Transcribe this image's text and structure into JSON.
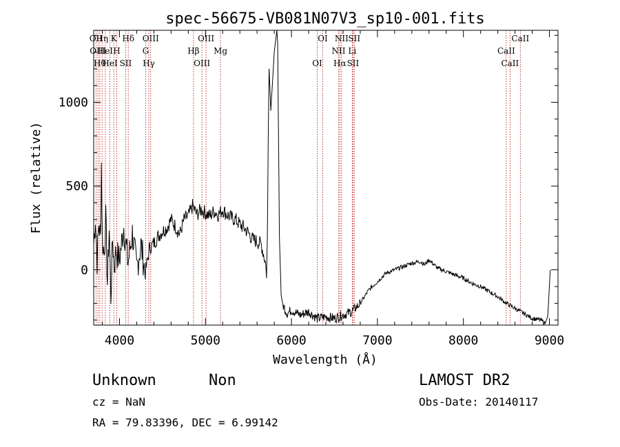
{
  "chart_data": {
    "type": "line",
    "title": "spec-56675-VB081N07V3_sp10-001.fits",
    "xlabel": "Wavelength (Å)",
    "ylabel": "Flux (relative)",
    "xlim": [
      3700,
      9100
    ],
    "ylim": [
      -330,
      1430
    ],
    "x_ticks": [
      4000,
      5000,
      6000,
      7000,
      8000,
      9000
    ],
    "y_ticks": [
      0,
      500,
      1000
    ],
    "grid": false,
    "series": [
      {
        "x": [
          3700,
          3720,
          3740,
          3760,
          3780,
          3790,
          3800,
          3820,
          3840,
          3860,
          3880,
          3900,
          3920,
          3940,
          3960,
          3980,
          4000,
          4050,
          4100,
          4150,
          4200,
          4250,
          4300,
          4350,
          4400,
          4450,
          4500,
          4550,
          4600,
          4650,
          4700,
          4750,
          4800,
          4850,
          4900,
          4950,
          5000,
          5050,
          5100,
          5150,
          5200,
          5250,
          5300,
          5350,
          5400,
          5450,
          5500,
          5550,
          5600,
          5650,
          5700,
          5710,
          5720,
          5730,
          5740,
          5760,
          5800,
          5830,
          5840,
          5860,
          5880,
          5900,
          5950,
          6000,
          6100,
          6200,
          6300,
          6400,
          6500,
          6600,
          6700,
          6800,
          6900,
          7000,
          7100,
          7200,
          7300,
          7400,
          7500,
          7550,
          7600,
          7700,
          7800,
          7900,
          8000,
          8100,
          8200,
          8300,
          8400,
          8500,
          8600,
          8700,
          8800,
          8900,
          8950,
          8980,
          9000,
          9010
        ],
        "y": [
          150,
          320,
          60,
          280,
          180,
          640,
          200,
          90,
          300,
          -80,
          250,
          -160,
          180,
          20,
          120,
          80,
          60,
          260,
          40,
          220,
          10,
          150,
          -20,
          130,
          160,
          200,
          230,
          250,
          300,
          260,
          210,
          300,
          320,
          380,
          330,
          360,
          340,
          320,
          350,
          330,
          360,
          330,
          310,
          300,
          270,
          250,
          220,
          180,
          170,
          150,
          40,
          -50,
          200,
          800,
          1200,
          950,
          1300,
          1430,
          1350,
          200,
          -150,
          -210,
          -260,
          -240,
          -270,
          -250,
          -290,
          -280,
          -290,
          -270,
          -250,
          -200,
          -120,
          -70,
          -20,
          0,
          20,
          40,
          50,
          30,
          60,
          10,
          -10,
          -30,
          -50,
          -80,
          -100,
          -130,
          -160,
          -200,
          -230,
          -260,
          -290,
          -300,
          -320,
          -280,
          -100,
          0
        ]
      }
    ],
    "line_markers": [
      {
        "wavelength": 3727,
        "label": "OII"
      },
      {
        "wavelength": 3750,
        "label": "OIII"
      },
      {
        "wavelength": 3771,
        "label": "Hθ"
      },
      {
        "wavelength": 3798,
        "label": "Hη"
      },
      {
        "wavelength": 3835,
        "label": "HeI"
      },
      {
        "wavelength": 3889,
        "label": "HeI"
      },
      {
        "wavelength": 3934,
        "label": "K"
      },
      {
        "wavelength": 3968,
        "label": "H"
      },
      {
        "wavelength": 4072,
        "label": "SII"
      },
      {
        "wavelength": 4102,
        "label": "Hδ"
      },
      {
        "wavelength": 4304,
        "label": "G"
      },
      {
        "wavelength": 4341,
        "label": "Hγ"
      },
      {
        "wavelength": 4363,
        "label": "OIII"
      },
      {
        "wavelength": 4861,
        "label": "Hβ"
      },
      {
        "wavelength": 4959,
        "label": "OIII"
      },
      {
        "wavelength": 5007,
        "label": "OIII"
      },
      {
        "wavelength": 5175,
        "label": "Mg"
      },
      {
        "wavelength": 6300,
        "label": "OI"
      },
      {
        "wavelength": 6364,
        "label": "OI"
      },
      {
        "wavelength": 6548,
        "label": "NII"
      },
      {
        "wavelength": 6563,
        "label": "Hα"
      },
      {
        "wavelength": 6583,
        "label": "NII"
      },
      {
        "wavelength": 6707,
        "label": "Li"
      },
      {
        "wavelength": 6716,
        "label": "SII"
      },
      {
        "wavelength": 6731,
        "label": "SII"
      },
      {
        "wavelength": 8498,
        "label": "CaII"
      },
      {
        "wavelength": 8542,
        "label": "CaII"
      },
      {
        "wavelength": 8662,
        "label": "CaII"
      }
    ]
  },
  "footer": {
    "class_text": "Unknown",
    "subclass_text": "Non",
    "cz_text": "cz = NaN",
    "coords_text": "RA =   79.83396, DEC =    6.99142",
    "survey_text": "LAMOST DR2",
    "obs_date_text": "Obs-Date: 20140117"
  }
}
